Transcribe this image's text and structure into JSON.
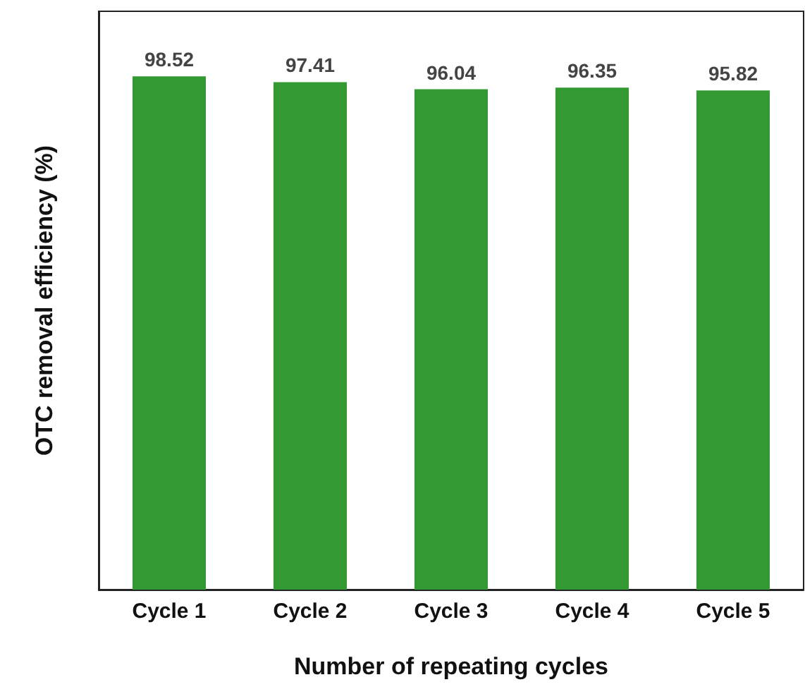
{
  "chart_data": {
    "type": "bar",
    "xlabel": "Number of repeating cycles",
    "ylabel": "OTC removal efficiency (%)",
    "categories": [
      "Cycle 1",
      "Cycle 2",
      "Cycle 3",
      "Cycle 4",
      "Cycle 5"
    ],
    "values": [
      98.52,
      97.41,
      96.04,
      96.35,
      95.82
    ],
    "color": "#339933",
    "ylim": [
      0,
      111
    ],
    "data_labels": true,
    "tick_labels": "x"
  }
}
